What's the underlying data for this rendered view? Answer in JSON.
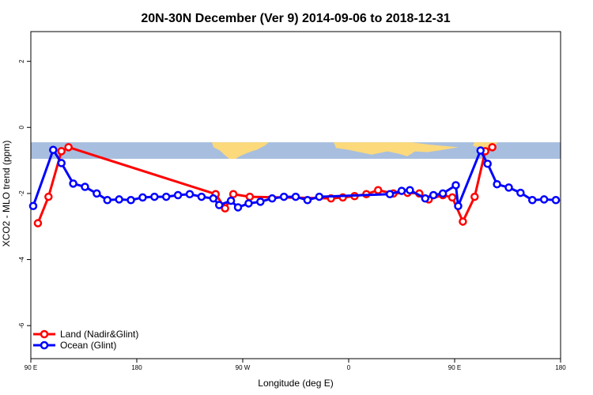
{
  "chart_data": {
    "type": "line",
    "title": "20N-30N December (Ver 9)   2014-09-06 to 2018-12-31",
    "xlabel": "Longitude (deg E)",
    "ylabel": "XCO2 - MLO trend (ppm)",
    "xlim": [
      90,
      540
    ],
    "ylim": [
      -7.0,
      2.9
    ],
    "x_ticks": [
      {
        "value": 90,
        "label": "90 E"
      },
      {
        "value": 180,
        "label": "180"
      },
      {
        "value": 270,
        "label": "90 W"
      },
      {
        "value": 360,
        "label": "0"
      },
      {
        "value": 450,
        "label": "90 E"
      },
      {
        "value": 540,
        "label": "180"
      }
    ],
    "y_ticks": [
      {
        "value": 2,
        "label": "2"
      },
      {
        "value": 0,
        "label": "0"
      },
      {
        "value": -2,
        "label": "-2"
      },
      {
        "value": -4,
        "label": "-4"
      },
      {
        "value": -6,
        "label": "-6"
      }
    ],
    "map_band": {
      "y_range": [
        -0.95,
        -0.45
      ],
      "colors": {
        "ocean": "#a7bedf",
        "land": "#fcd97b"
      }
    },
    "legend": {
      "position": "bottom-left"
    },
    "series": [
      {
        "name": "Land (Nadir&Glint)",
        "color": "#ff0000",
        "points": [
          [
            96,
            -2.9
          ],
          [
            105,
            -2.1
          ],
          [
            116,
            -0.72
          ],
          [
            122,
            -0.6
          ],
          [
            247,
            -2.02
          ],
          [
            255,
            -2.45
          ],
          [
            262,
            -2.02
          ],
          [
            276,
            -2.1
          ],
          [
            345,
            -2.15
          ],
          [
            355,
            -2.12
          ],
          [
            365,
            -2.08
          ],
          [
            375,
            -2.02
          ],
          [
            385,
            -1.9
          ],
          [
            398,
            -2.0
          ],
          [
            410,
            -1.98
          ],
          [
            420,
            -2.0
          ],
          [
            428,
            -2.18
          ],
          [
            440,
            -2.05
          ],
          [
            448,
            -2.12
          ],
          [
            457,
            -2.85
          ],
          [
            467,
            -2.1
          ],
          [
            476,
            -0.72
          ],
          [
            482,
            -0.6
          ]
        ]
      },
      {
        "name": "Ocean (Glint)",
        "color": "#0000ff",
        "points": [
          [
            92,
            -2.38
          ],
          [
            109,
            -0.68
          ],
          [
            116,
            -1.08
          ],
          [
            126,
            -1.7
          ],
          [
            136,
            -1.8
          ],
          [
            146,
            -2.0
          ],
          [
            155,
            -2.2
          ],
          [
            165,
            -2.18
          ],
          [
            175,
            -2.2
          ],
          [
            185,
            -2.12
          ],
          [
            195,
            -2.1
          ],
          [
            205,
            -2.1
          ],
          [
            215,
            -2.05
          ],
          [
            225,
            -2.02
          ],
          [
            235,
            -2.1
          ],
          [
            245,
            -2.15
          ],
          [
            250,
            -2.35
          ],
          [
            260,
            -2.22
          ],
          [
            266,
            -2.42
          ],
          [
            275,
            -2.3
          ],
          [
            285,
            -2.25
          ],
          [
            295,
            -2.15
          ],
          [
            305,
            -2.1
          ],
          [
            315,
            -2.1
          ],
          [
            325,
            -2.2
          ],
          [
            335,
            -2.1
          ],
          [
            395,
            -2.02
          ],
          [
            405,
            -1.92
          ],
          [
            412,
            -1.9
          ],
          [
            425,
            -2.15
          ],
          [
            432,
            -2.05
          ],
          [
            440,
            -2.0
          ],
          [
            451,
            -1.75
          ],
          [
            453,
            -2.38
          ],
          [
            472,
            -0.7
          ],
          [
            478,
            -1.1
          ],
          [
            486,
            -1.72
          ],
          [
            496,
            -1.82
          ],
          [
            506,
            -1.98
          ],
          [
            516,
            -2.2
          ],
          [
            526,
            -2.18
          ],
          [
            536,
            -2.2
          ]
        ]
      }
    ]
  }
}
